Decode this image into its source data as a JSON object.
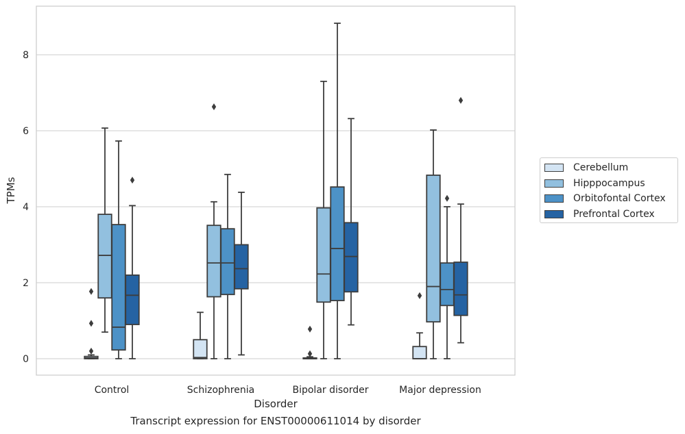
{
  "chart_data": {
    "type": "box",
    "title": "",
    "caption": "Transcript expression for ENST00000611014 by disorder",
    "xlabel": "Disorder",
    "ylabel": "TPMs",
    "ylim": [
      -0.4,
      9.3
    ],
    "yticks": [
      0,
      2,
      4,
      6,
      8
    ],
    "grid": true,
    "legend_position": "right",
    "categories": [
      "Control",
      "Schizophrenia",
      "Bipolar disorder",
      "Major depression"
    ],
    "series": [
      {
        "name": "Cerebellum",
        "color": "#d3e4f3",
        "boxes": [
          {
            "whisker_low": 0,
            "q1": 0,
            "median": 0.02,
            "q3": 0.06,
            "whisker_high": 0.1,
            "outliers": [
              0.2,
              0.93,
              1.77
            ]
          },
          {
            "whisker_low": 0,
            "q1": 0,
            "median": 0.03,
            "q3": 0.5,
            "whisker_high": 1.22,
            "outliers": []
          },
          {
            "whisker_low": 0,
            "q1": 0,
            "median": 0,
            "q3": 0.02,
            "whisker_high": 0.05,
            "outliers": [
              0.13,
              0.78
            ]
          },
          {
            "whisker_low": 0,
            "q1": 0,
            "median": 0,
            "q3": 0.32,
            "whisker_high": 0.68,
            "outliers": [
              1.66
            ]
          }
        ]
      },
      {
        "name": "Hipppocampus",
        "color": "#92c0df",
        "boxes": [
          {
            "whisker_low": 0.7,
            "q1": 1.6,
            "median": 2.72,
            "q3": 3.8,
            "whisker_high": 6.07,
            "outliers": []
          },
          {
            "whisker_low": 0,
            "q1": 1.63,
            "median": 2.52,
            "q3": 3.51,
            "whisker_high": 4.13,
            "outliers": [
              6.63
            ]
          },
          {
            "whisker_low": 0,
            "q1": 1.49,
            "median": 2.23,
            "q3": 3.97,
            "whisker_high": 7.3,
            "outliers": []
          },
          {
            "whisker_low": 0,
            "q1": 0.97,
            "median": 1.9,
            "q3": 4.83,
            "whisker_high": 6.02,
            "outliers": []
          }
        ]
      },
      {
        "name": "Orbitofontal Cortex",
        "color": "#4d92c7",
        "boxes": [
          {
            "whisker_low": 0,
            "q1": 0.23,
            "median": 0.83,
            "q3": 3.53,
            "whisker_high": 5.73,
            "outliers": []
          },
          {
            "whisker_low": 0,
            "q1": 1.69,
            "median": 2.52,
            "q3": 3.42,
            "whisker_high": 4.85,
            "outliers": []
          },
          {
            "whisker_low": 0,
            "q1": 1.53,
            "median": 2.9,
            "q3": 4.52,
            "whisker_high": 8.83,
            "outliers": []
          },
          {
            "whisker_low": 0,
            "q1": 1.4,
            "median": 1.82,
            "q3": 2.52,
            "whisker_high": 4.0,
            "outliers": [
              4.22
            ]
          }
        ]
      },
      {
        "name": "Prefrontal Cortex",
        "color": "#2563a3",
        "boxes": [
          {
            "whisker_low": 0,
            "q1": 0.9,
            "median": 1.67,
            "q3": 2.2,
            "whisker_high": 4.03,
            "outliers": [
              4.7
            ]
          },
          {
            "whisker_low": 0.1,
            "q1": 1.84,
            "median": 2.37,
            "q3": 3.0,
            "whisker_high": 4.38,
            "outliers": []
          },
          {
            "whisker_low": 0.89,
            "q1": 1.76,
            "median": 2.69,
            "q3": 3.58,
            "whisker_high": 6.32,
            "outliers": []
          },
          {
            "whisker_low": 0.42,
            "q1": 1.14,
            "median": 1.68,
            "q3": 2.54,
            "whisker_high": 4.07,
            "outliers": [
              6.8
            ]
          }
        ]
      }
    ]
  }
}
